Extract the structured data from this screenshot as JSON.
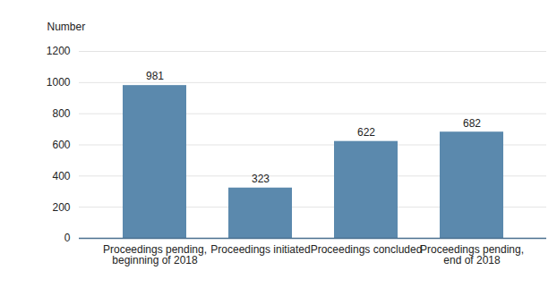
{
  "chart_data": {
    "type": "bar",
    "ylabel": "Number",
    "categories": [
      "Proceedings pending, beginning of 2018",
      "Proceedings initiated",
      "Proceedings concluded",
      "Proceedings pending, end of 2018"
    ],
    "values": [
      981,
      323,
      622,
      682
    ],
    "color": "#5b89ad",
    "ylim": [
      0,
      1200
    ],
    "yticks": [
      0,
      200,
      400,
      600,
      800,
      1000,
      1200
    ],
    "grid": true,
    "data_labels": true
  }
}
